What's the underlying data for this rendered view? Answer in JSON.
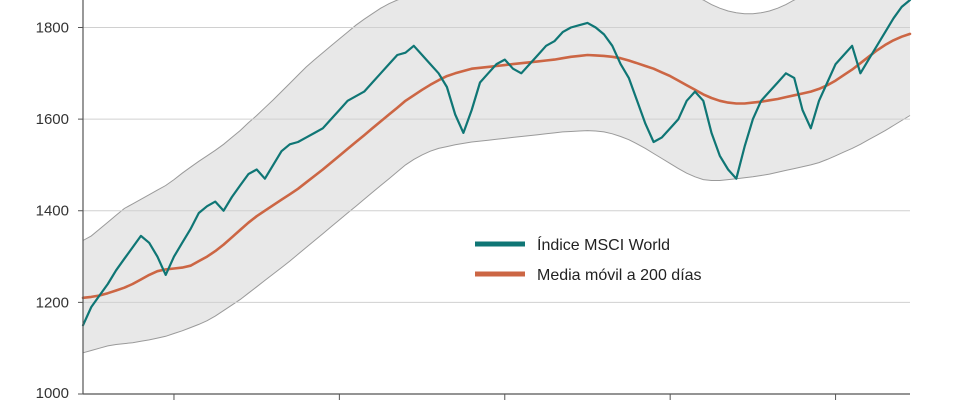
{
  "chart_data": {
    "type": "line",
    "title": "",
    "xlabel": "",
    "ylabel": "",
    "ylim": [
      1000,
      1860
    ],
    "y_ticks": [
      "1000",
      "1200",
      "1400",
      "1600",
      "1800"
    ],
    "y_tick_values": [
      1000,
      1200,
      1400,
      1600,
      1800
    ],
    "x_index_range": [
      0,
      100
    ],
    "x_tick_positions": [
      11,
      31,
      51,
      71,
      91
    ],
    "grid": "horizontal",
    "legend_position": "center-right",
    "series": [
      {
        "name": "Índice MSCI World",
        "color": "#0f7675",
        "values": [
          1150,
          1190,
          1215,
          1240,
          1270,
          1295,
          1320,
          1345,
          1330,
          1300,
          1260,
          1300,
          1330,
          1360,
          1395,
          1410,
          1420,
          1400,
          1430,
          1455,
          1480,
          1490,
          1470,
          1500,
          1530,
          1545,
          1550,
          1560,
          1570,
          1580,
          1600,
          1620,
          1640,
          1650,
          1660,
          1680,
          1700,
          1720,
          1740,
          1745,
          1760,
          1740,
          1720,
          1700,
          1670,
          1610,
          1570,
          1620,
          1680,
          1700,
          1720,
          1730,
          1710,
          1700,
          1720,
          1740,
          1760,
          1770,
          1790,
          1800,
          1805,
          1810,
          1800,
          1785,
          1760,
          1720,
          1690,
          1640,
          1590,
          1550,
          1560,
          1580,
          1600,
          1640,
          1660,
          1640,
          1570,
          1520,
          1490,
          1470,
          1540,
          1600,
          1640,
          1660,
          1680,
          1700,
          1690,
          1620,
          1580,
          1640,
          1680,
          1720,
          1740,
          1760,
          1700,
          1730,
          1760,
          1790,
          1820,
          1845,
          1860
        ]
      },
      {
        "name": "Media móvil a 200 días",
        "color": "#cc6644",
        "values": [
          1210,
          1212,
          1215,
          1220,
          1226,
          1232,
          1240,
          1250,
          1260,
          1268,
          1272,
          1274,
          1276,
          1280,
          1290,
          1300,
          1312,
          1326,
          1342,
          1358,
          1374,
          1388,
          1400,
          1412,
          1424,
          1436,
          1448,
          1462,
          1476,
          1490,
          1505,
          1520,
          1535,
          1550,
          1565,
          1580,
          1595,
          1610,
          1625,
          1640,
          1652,
          1664,
          1675,
          1685,
          1694,
          1700,
          1705,
          1710,
          1712,
          1714,
          1716,
          1718,
          1720,
          1722,
          1724,
          1726,
          1728,
          1730,
          1733,
          1736,
          1738,
          1740,
          1739,
          1738,
          1736,
          1733,
          1728,
          1722,
          1716,
          1710,
          1702,
          1694,
          1684,
          1674,
          1664,
          1654,
          1646,
          1640,
          1636,
          1634,
          1634,
          1636,
          1638,
          1641,
          1644,
          1648,
          1652,
          1656,
          1660,
          1666,
          1674,
          1684,
          1696,
          1708,
          1722,
          1736,
          1750,
          1762,
          1772,
          1780,
          1786
        ]
      }
    ],
    "band": {
      "upper": [
        1335,
        1345,
        1360,
        1375,
        1390,
        1405,
        1415,
        1425,
        1435,
        1445,
        1455,
        1468,
        1482,
        1495,
        1508,
        1520,
        1532,
        1545,
        1560,
        1575,
        1592,
        1608,
        1625,
        1642,
        1660,
        1678,
        1696,
        1714,
        1730,
        1745,
        1760,
        1775,
        1790,
        1805,
        1818,
        1830,
        1842,
        1852,
        1860,
        1866,
        1870,
        1872,
        1872,
        1872,
        1872,
        1872,
        1872,
        1872,
        1872,
        1872,
        1872,
        1872,
        1872,
        1872,
        1872,
        1872,
        1872,
        1872,
        1872,
        1872,
        1872,
        1872,
        1872,
        1872,
        1872,
        1872,
        1872,
        1872,
        1872,
        1872,
        1872,
        1872,
        1872,
        1872,
        1868,
        1860,
        1850,
        1842,
        1836,
        1832,
        1830,
        1830,
        1832,
        1836,
        1842,
        1850,
        1860,
        1868,
        1872,
        1872,
        1872,
        1872,
        1872,
        1872,
        1872,
        1872,
        1872,
        1872,
        1872,
        1872,
        1872
      ],
      "lower": [
        1090,
        1095,
        1100,
        1105,
        1108,
        1110,
        1112,
        1115,
        1118,
        1122,
        1126,
        1132,
        1138,
        1145,
        1152,
        1160,
        1170,
        1182,
        1194,
        1206,
        1220,
        1234,
        1248,
        1262,
        1276,
        1290,
        1305,
        1320,
        1335,
        1350,
        1365,
        1380,
        1395,
        1410,
        1425,
        1440,
        1455,
        1470,
        1485,
        1500,
        1512,
        1522,
        1530,
        1536,
        1540,
        1544,
        1547,
        1550,
        1552,
        1554,
        1556,
        1558,
        1560,
        1562,
        1564,
        1566,
        1568,
        1570,
        1572,
        1573,
        1574,
        1575,
        1574,
        1572,
        1568,
        1562,
        1555,
        1546,
        1536,
        1525,
        1514,
        1503,
        1492,
        1482,
        1474,
        1468,
        1466,
        1466,
        1468,
        1470,
        1472,
        1474,
        1477,
        1480,
        1484,
        1488,
        1492,
        1496,
        1500,
        1505,
        1512,
        1520,
        1528,
        1536,
        1545,
        1555,
        1565,
        1575,
        1586,
        1597,
        1608
      ]
    }
  }
}
